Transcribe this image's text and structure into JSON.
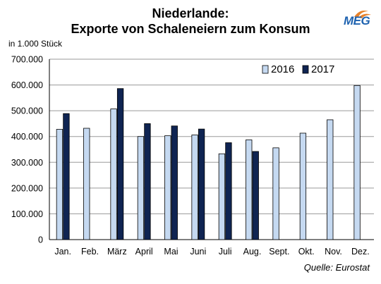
{
  "chart_data": {
    "type": "bar",
    "title": "Niederlande:",
    "subtitle": "Exporte von  Schaleneiern zum Konsum",
    "ylabel": "in 1.000 Stück",
    "categories": [
      "Jan.",
      "Feb.",
      "März",
      "April",
      "Mai",
      "Juni",
      "Juli",
      "Aug.",
      "Sept.",
      "Okt.",
      "Nov.",
      "Dez."
    ],
    "series": [
      {
        "name": "2016",
        "color": "#c5d9f1",
        "values": [
          428000,
          432000,
          507000,
          400000,
          403000,
          406000,
          333000,
          387000,
          356000,
          413000,
          465000,
          598000
        ]
      },
      {
        "name": "2017",
        "color": "#0f2452",
        "values": [
          489000,
          null,
          586000,
          450000,
          441000,
          429000,
          376000,
          342000,
          null,
          null,
          null,
          null
        ]
      }
    ],
    "ylim": [
      0,
      700000
    ],
    "yticks": [
      "0",
      "100.000",
      "200.000",
      "300.000",
      "400.000",
      "500.000",
      "600.000",
      "700.000"
    ],
    "grid": true,
    "legend": "top-right"
  },
  "source": "Quelle: Eurostat",
  "logo_text": "MEG"
}
